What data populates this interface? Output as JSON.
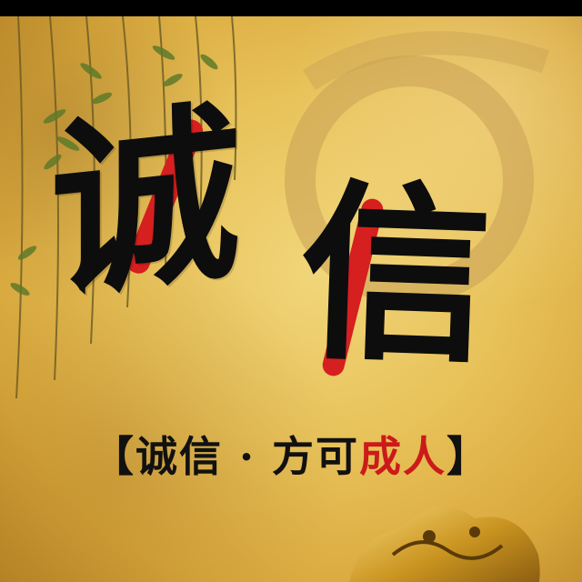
{
  "poster": {
    "main_char_1": "诚",
    "main_char_2": "信",
    "slogan": {
      "open_bracket": "【",
      "part_black": "诚信 · 方可",
      "part_red": "成人",
      "close_bracket": "】"
    }
  },
  "colors": {
    "background": "#e8c25a",
    "ink": "#0d0d0d",
    "accent_red": "#d61f1f"
  },
  "decorations": [
    "willow-branches",
    "faded-ring-brushstroke",
    "golden-dragon"
  ]
}
